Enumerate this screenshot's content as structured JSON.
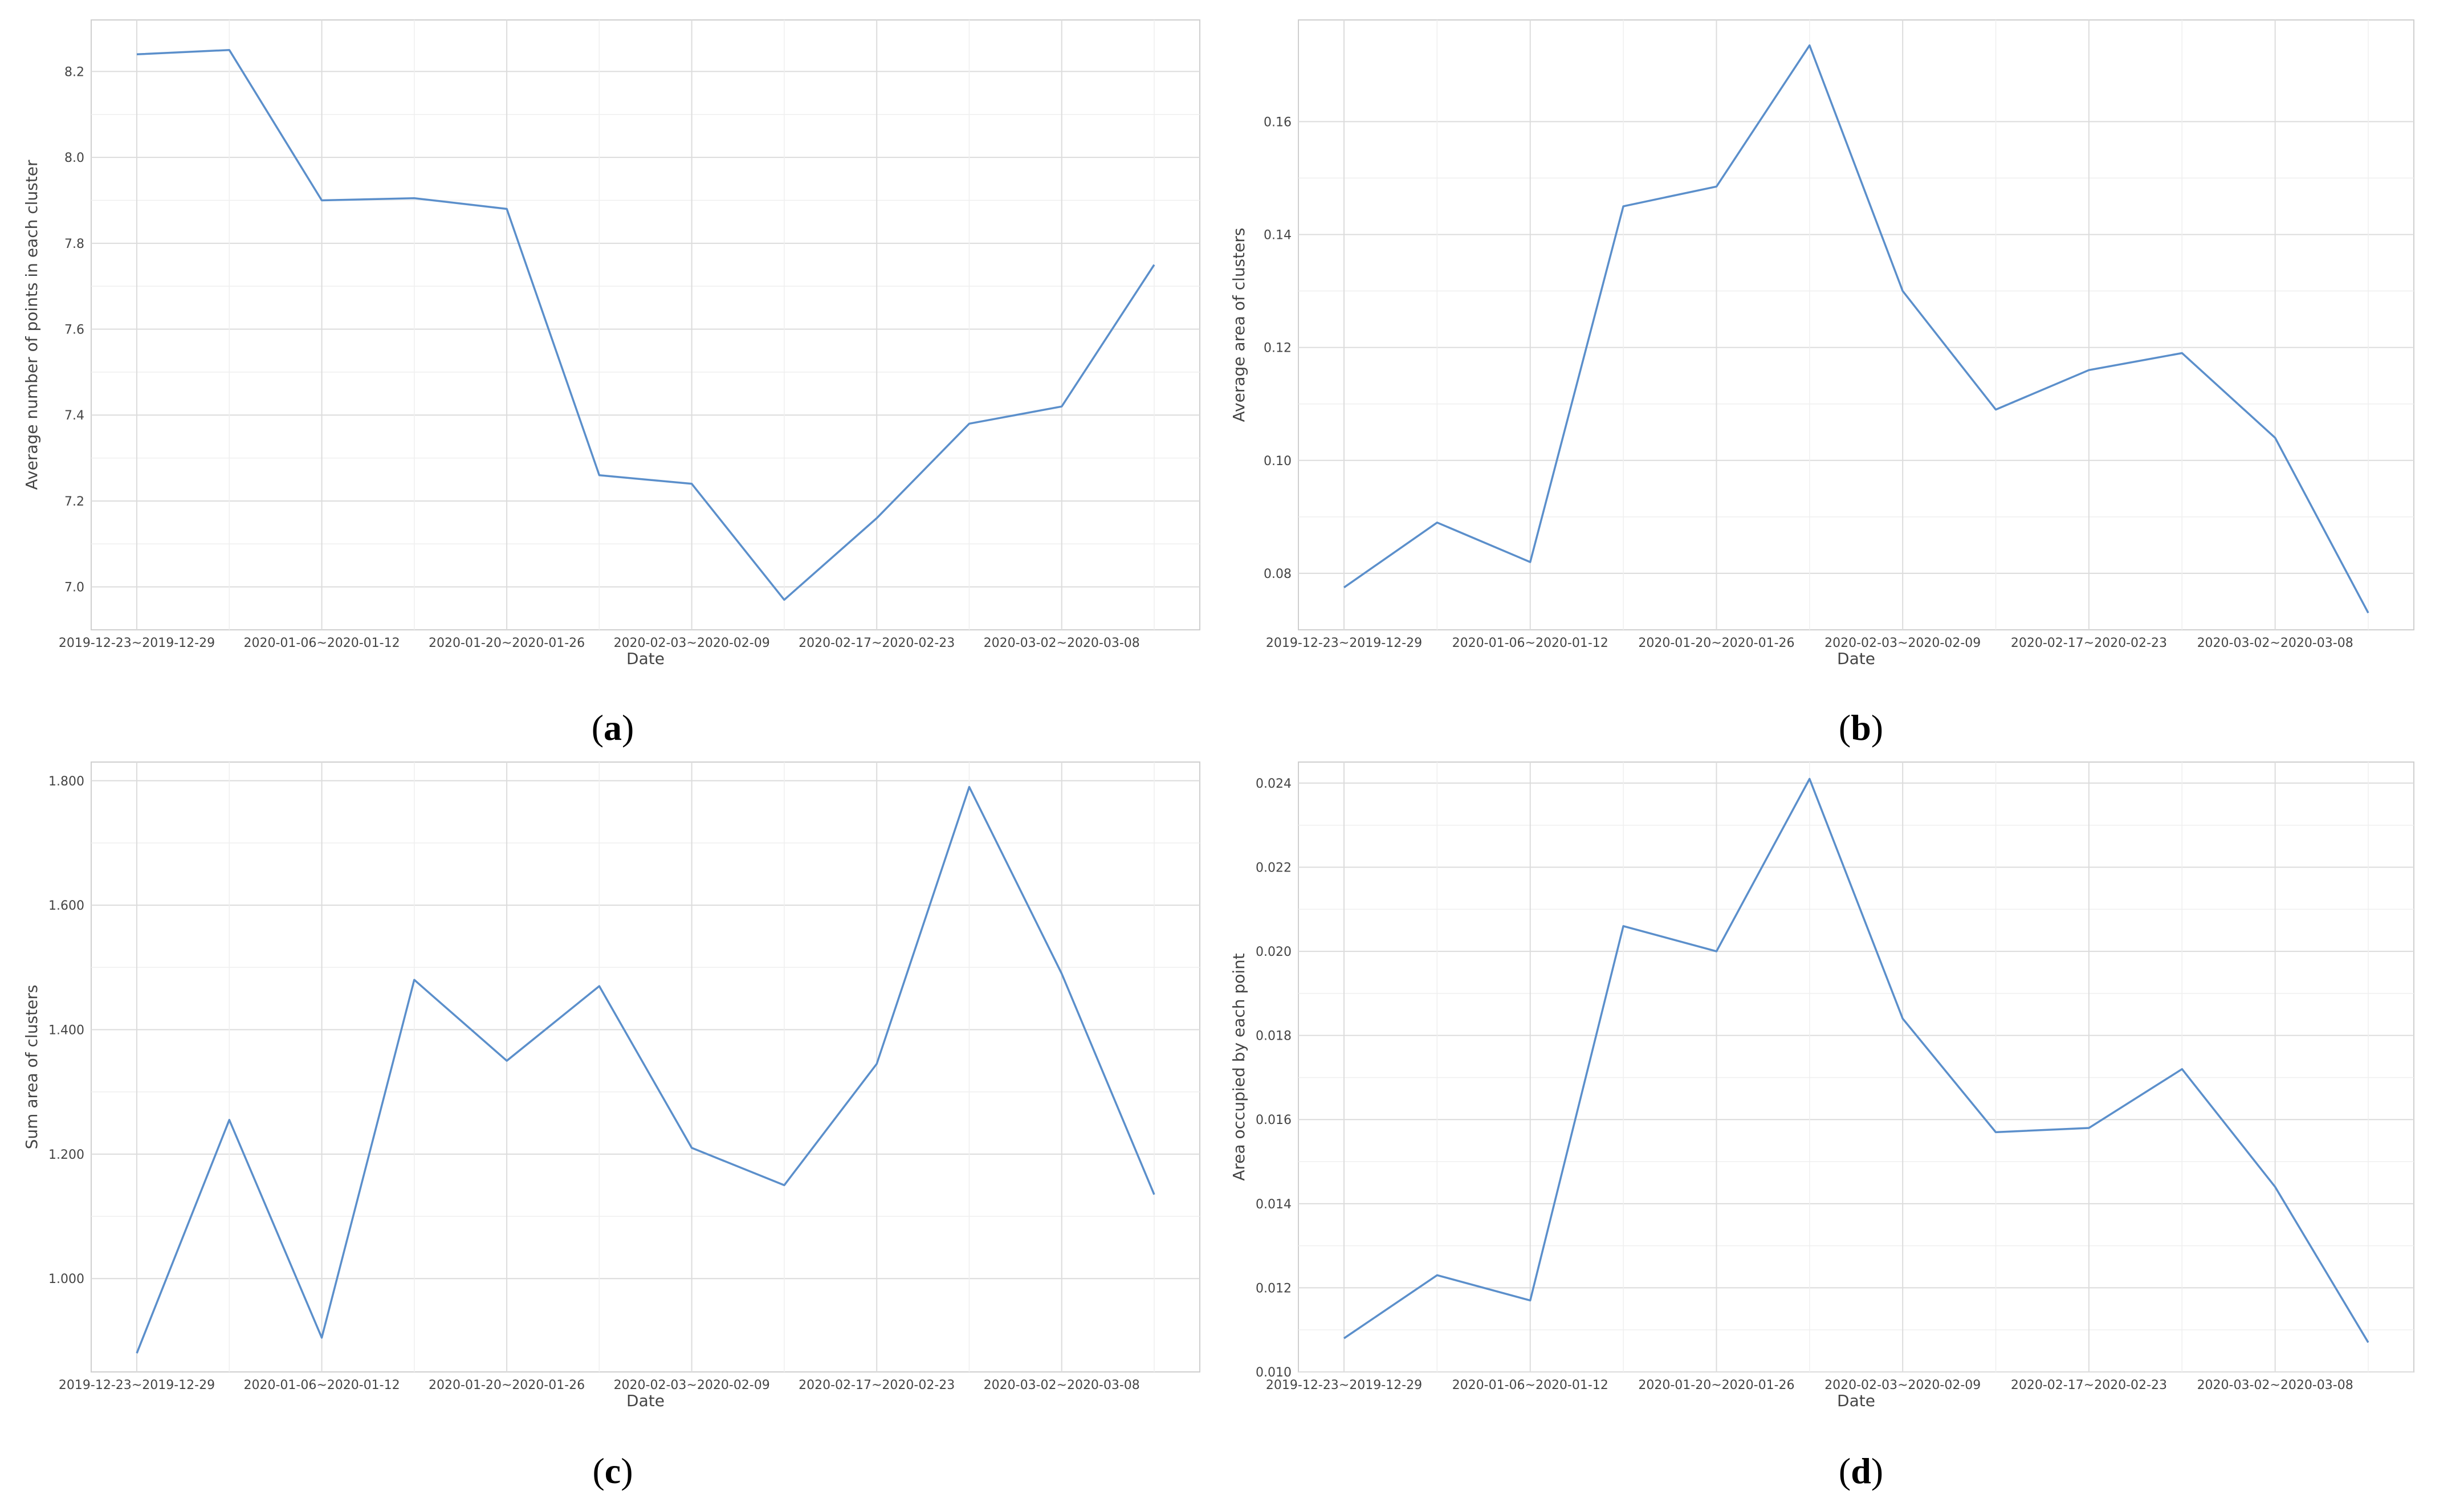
{
  "figure": {
    "panels": [
      {
        "caption_prefix": "(",
        "caption_letter": "a",
        "caption_suffix": ")"
      },
      {
        "caption_prefix": "(",
        "caption_letter": "b",
        "caption_suffix": ")"
      },
      {
        "caption_prefix": "(",
        "caption_letter": "c",
        "caption_suffix": ")"
      },
      {
        "caption_prefix": "(",
        "caption_letter": "d",
        "caption_suffix": ")"
      }
    ]
  },
  "chart_data": [
    {
      "type": "line",
      "xlabel": "Date",
      "ylabel": "Average number of points in each cluster",
      "line_color": "#5B8FCB",
      "grid": true,
      "x_tick_labels": [
        "2019-12-23~2019-12-29",
        "2020-01-06~2020-01-12",
        "2020-01-20~2020-01-26",
        "2020-02-03~2020-02-09",
        "2020-02-17~2020-02-23",
        "2020-03-02~2020-03-08"
      ],
      "y_ticks": [
        7.0,
        7.2,
        7.4,
        7.6,
        7.8,
        8.0,
        8.2
      ],
      "y_tick_labels": [
        "7.0",
        "7.2",
        "7.4",
        "7.6",
        "7.8",
        "8.0",
        "8.2"
      ],
      "ylim": [
        6.9,
        8.32
      ],
      "values": [
        8.24,
        8.25,
        7.9,
        7.905,
        7.88,
        7.26,
        7.24,
        6.97,
        7.16,
        7.38,
        7.42,
        7.75
      ]
    },
    {
      "type": "line",
      "xlabel": "Date",
      "ylabel": "Average area of clusters",
      "line_color": "#5B8FCB",
      "grid": true,
      "x_tick_labels": [
        "2019-12-23~2019-12-29",
        "2020-01-06~2020-01-12",
        "2020-01-20~2020-01-26",
        "2020-02-03~2020-02-09",
        "2020-02-17~2020-02-23",
        "2020-03-02~2020-03-08"
      ],
      "y_ticks": [
        0.08,
        0.1,
        0.12,
        0.14,
        0.16
      ],
      "y_tick_labels": [
        "0.08",
        "0.10",
        "0.12",
        "0.14",
        "0.16"
      ],
      "ylim": [
        0.07,
        0.178
      ],
      "values": [
        0.0775,
        0.089,
        0.082,
        0.145,
        0.1485,
        0.1735,
        0.13,
        0.109,
        0.116,
        0.119,
        0.104,
        0.073
      ]
    },
    {
      "type": "line",
      "xlabel": "Date",
      "ylabel": "Sum area of clusters",
      "line_color": "#5B8FCB",
      "grid": true,
      "x_tick_labels": [
        "2019-12-23~2019-12-29",
        "2020-01-06~2020-01-12",
        "2020-01-20~2020-01-26",
        "2020-02-03~2020-02-09",
        "2020-02-17~2020-02-23",
        "2020-03-02~2020-03-08"
      ],
      "y_ticks": [
        1.0,
        1.2,
        1.4,
        1.6,
        1.8
      ],
      "y_tick_labels": [
        "1.000",
        "1.200",
        "1.400",
        "1.600",
        "1.800"
      ],
      "ylim": [
        0.85,
        1.83
      ],
      "values": [
        0.88,
        1.255,
        0.905,
        1.48,
        1.35,
        1.47,
        1.21,
        1.15,
        1.345,
        1.79,
        1.49,
        1.135
      ]
    },
    {
      "type": "line",
      "xlabel": "Date",
      "ylabel": "Area occupied by each point",
      "line_color": "#5B8FCB",
      "grid": true,
      "x_tick_labels": [
        "2019-12-23~2019-12-29",
        "2020-01-06~2020-01-12",
        "2020-01-20~2020-01-26",
        "2020-02-03~2020-02-09",
        "2020-02-17~2020-02-23",
        "2020-03-02~2020-03-08"
      ],
      "y_ticks": [
        0.01,
        0.012,
        0.014,
        0.016,
        0.018,
        0.02,
        0.022,
        0.024
      ],
      "y_tick_labels": [
        "0.010",
        "0.012",
        "0.014",
        "0.016",
        "0.018",
        "0.020",
        "0.022",
        "0.024"
      ],
      "ylim": [
        0.01,
        0.0245
      ],
      "values": [
        0.0108,
        0.0123,
        0.0117,
        0.0206,
        0.02,
        0.0241,
        0.0184,
        0.0157,
        0.0158,
        0.0172,
        0.0144,
        0.0107
      ]
    }
  ]
}
